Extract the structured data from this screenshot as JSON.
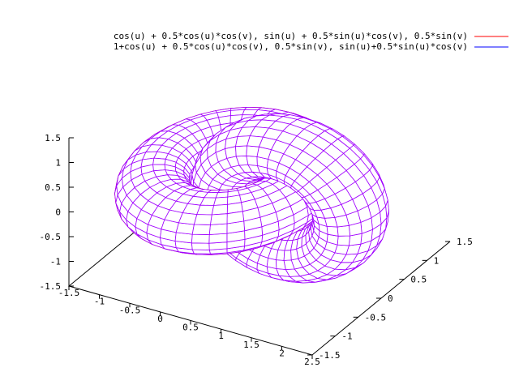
{
  "legend": [
    {
      "label": "cos(u) + 0.5*cos(u)*cos(v), sin(u) + 0.5*sin(u)*cos(v), 0.5*sin(v)",
      "color": "#ff0000"
    },
    {
      "label": "1+cos(u) + 0.5*cos(u)*cos(v), 0.5*sin(v), sin(u)+0.5*sin(u)*cos(v)",
      "color": "#0000ff"
    }
  ],
  "chart_data": {
    "type": "surface3d",
    "style": "wireframe mesh",
    "hidden_surface_removal": true,
    "grid": false,
    "legend_position": "top-right",
    "x_ticks": [
      "-1.5",
      "-1",
      "-0.5",
      "0",
      "0.5",
      "1",
      "1.5",
      "2",
      "2.5"
    ],
    "y_ticks": [
      "-1.5",
      "-1",
      "-0.5",
      "0",
      "0.5",
      "1",
      "1.5"
    ],
    "z_ticks": [
      "-1.5",
      "-1",
      "-0.5",
      "0",
      "0.5",
      "1",
      "1.5"
    ],
    "xlim": [
      -1.5,
      2.5
    ],
    "ylim": [
      -1.5,
      1.5
    ],
    "zlim": [
      -1.5,
      1.5
    ],
    "view": {
      "rot_x_deg": 60,
      "rot_z_deg": 30
    },
    "series": [
      {
        "parametric": [
          "cos(u)+0.5*cos(u)*cos(v)",
          "sin(u)+0.5*sin(u)*cos(v)",
          "0.5*sin(v)"
        ],
        "offset": [
          0,
          0,
          0
        ],
        "plane": "xy",
        "major_radius": 1,
        "minor_radius": 0.5,
        "u_range": [
          0,
          6.283185
        ],
        "v_range": [
          0,
          6.283185
        ],
        "isosamples": [
          40,
          20
        ],
        "front_color": "#ff0000",
        "back_color": "#a000ff"
      },
      {
        "parametric": [
          "1+cos(u)+0.5*cos(u)*cos(v)",
          "0.5*sin(v)",
          "sin(u)+0.5*sin(u)*cos(v)"
        ],
        "offset": [
          1,
          0,
          0
        ],
        "plane": "xz",
        "major_radius": 1,
        "minor_radius": 0.5,
        "u_range": [
          0,
          6.283185
        ],
        "v_range": [
          0,
          6.283185
        ],
        "isosamples": [
          40,
          20
        ],
        "front_color": "#a000ff",
        "back_color": "#a000ff"
      }
    ]
  }
}
